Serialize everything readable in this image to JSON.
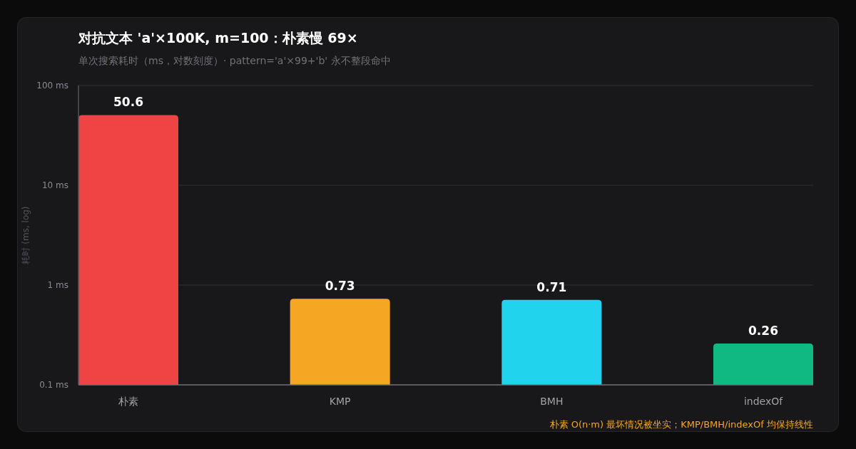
{
  "chart_data": {
    "type": "bar",
    "title": "对抗文本 'a'×100K, m=100：朴素慢 69×",
    "subtitle": "单次搜索耗时（ms，对数刻度）· pattern='a'×99+'b' 永不整段命中",
    "ylabel": "耗时 (ms, log)",
    "categories": [
      "朴素",
      "KMP",
      "BMH",
      "indexOf"
    ],
    "values": [
      50.6,
      0.73,
      0.71,
      0.26
    ],
    "colors": [
      "#ef4444",
      "#f5a623",
      "#22d3ee",
      "#10b981"
    ],
    "log": true,
    "ylim": [
      0.1,
      100
    ],
    "yticks": [
      {
        "value": 0.1,
        "label": "0.1 ms"
      },
      {
        "value": 1,
        "label": "1 ms"
      },
      {
        "value": 10,
        "label": "10 ms"
      },
      {
        "value": 100,
        "label": "100 ms"
      }
    ],
    "grid": "y",
    "data_labels": true,
    "annotations": [
      "朴素 O(n·m) 最坏情况被坐实；KMP/BMH/indexOf 均保持线性"
    ]
  }
}
